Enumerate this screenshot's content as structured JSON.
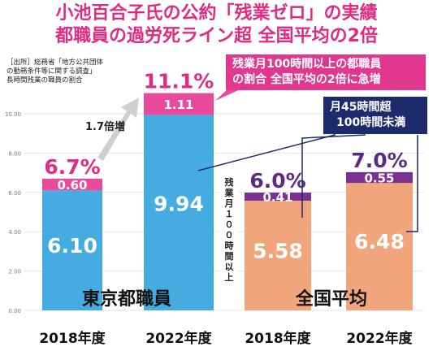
{
  "title": {
    "line1": "小池百合子氏の公約「残業ゼロ」の実績",
    "line2": "都職員の過労死ライン超 全国平均の2倍"
  },
  "source": {
    "line1": "［出所］総務省「地方公共団体",
    "line2": "の勤務条件等に関する調査」",
    "line3": "長時間残業の職員の割合"
  },
  "callouts": {
    "pink_line1": "残業月100時間以上の都職員",
    "pink_line2": "の割合 全国平均の2倍に急増",
    "navy_line1": "月45時間超",
    "navy_line2": "100時間未満",
    "vertical_chars": [
      "残",
      "業",
      "月",
      "１",
      "０",
      "０",
      "時",
      "間",
      "以",
      "上"
    ],
    "growth": "1.7倍増"
  },
  "chart_data": {
    "type": "bar",
    "stacked": true,
    "categories": [
      "2018年度",
      "2022年度",
      "2018年度",
      "2022年度"
    ],
    "groups": [
      "東京都職員",
      "全国平均"
    ],
    "ylim": [
      0,
      12
    ],
    "yticks": [
      "0.00",
      "2.00",
      "4.00",
      "6.00",
      "8.00",
      "10.00"
    ],
    "series": [
      {
        "values": [
          6.1,
          9.94,
          5.58,
          6.48
        ]
      },
      {
        "values": [
          0.6,
          1.11,
          0.41,
          0.55
        ]
      }
    ],
    "bottom_labels": [
      "6.10",
      "9.94",
      "5.58",
      "6.48"
    ],
    "top_labels": [
      "0.60",
      "1.11",
      "0.41",
      "0.55"
    ],
    "totals": [
      "6.7%",
      "11.1%",
      "6.0%",
      "7.0%"
    ],
    "colors": {
      "tokyo_base": "#45ace2",
      "tokyo_top": "#e94b9b",
      "national_base": "#f0a57d",
      "national_top": "#7a3191",
      "total_tokyo": "#e02a83",
      "total_national": "#5b2a86",
      "grid": "#e6e6e6",
      "arrow": "#cfcfcf"
    }
  }
}
